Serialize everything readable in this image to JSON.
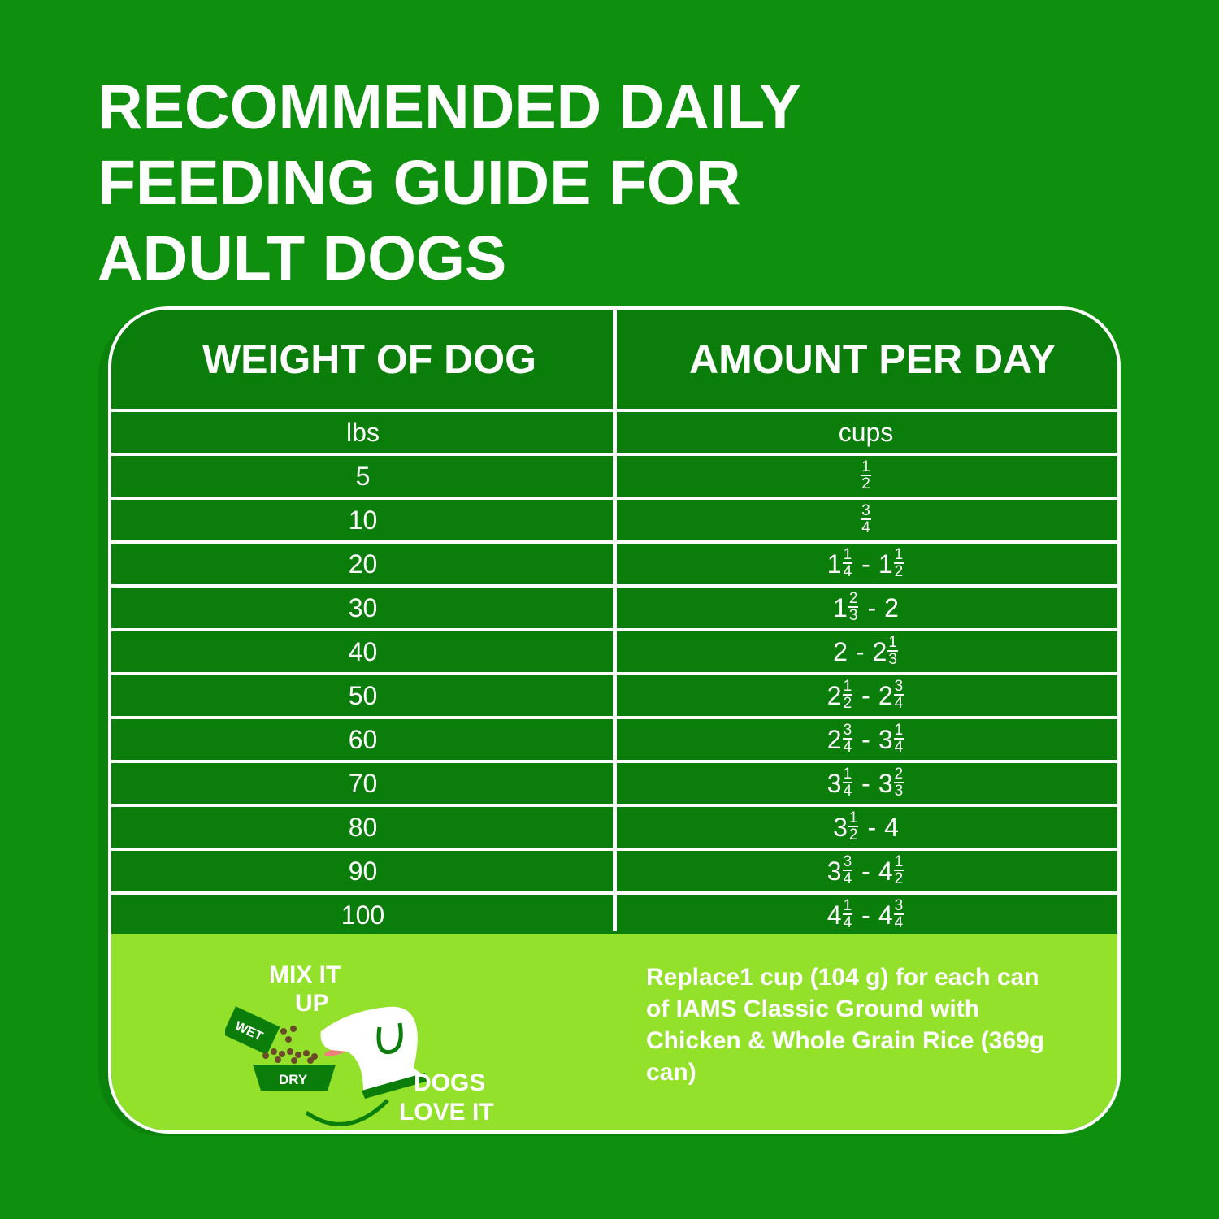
{
  "title": "RECOMMENDED DAILY\nFEEDING GUIDE FOR\nADULT DOGS",
  "table": {
    "headers": [
      "WEIGHT OF DOG",
      "AMOUNT PER DAY"
    ],
    "units": [
      "lbs",
      "cups"
    ],
    "rows": [
      {
        "weight": "5",
        "amount": [
          {
            "num": "1",
            "den": "2"
          }
        ]
      },
      {
        "weight": "10",
        "amount": [
          {
            "num": "3",
            "den": "4"
          }
        ]
      },
      {
        "weight": "20",
        "amount": [
          {
            "whole": "1",
            "num": "1",
            "den": "4"
          },
          "-",
          {
            "whole": "1",
            "num": "1",
            "den": "2"
          }
        ]
      },
      {
        "weight": "30",
        "amount": [
          {
            "whole": "1",
            "num": "2",
            "den": "3"
          },
          "-",
          {
            "whole": "2"
          }
        ]
      },
      {
        "weight": "40",
        "amount": [
          {
            "whole": "2"
          },
          "-",
          {
            "whole": "2",
            "num": "1",
            "den": "3"
          }
        ]
      },
      {
        "weight": "50",
        "amount": [
          {
            "whole": "2",
            "num": "1",
            "den": "2"
          },
          "-",
          {
            "whole": "2",
            "num": "3",
            "den": "4"
          }
        ]
      },
      {
        "weight": "60",
        "amount": [
          {
            "whole": "2",
            "num": "3",
            "den": "4"
          },
          "-",
          {
            "whole": "3",
            "num": "1",
            "den": "4"
          }
        ]
      },
      {
        "weight": "70",
        "amount": [
          {
            "whole": "3",
            "num": "1",
            "den": "4"
          },
          "-",
          {
            "whole": "3",
            "num": "2",
            "den": "3"
          }
        ]
      },
      {
        "weight": "80",
        "amount": [
          {
            "whole": "3",
            "num": "1",
            "den": "2"
          },
          "-",
          {
            "whole": "4"
          }
        ]
      },
      {
        "weight": "90",
        "amount": [
          {
            "whole": "3",
            "num": "3",
            "den": "4"
          },
          "-",
          {
            "whole": "4",
            "num": "1",
            "den": "2"
          }
        ]
      },
      {
        "weight": "100",
        "amount": [
          {
            "whole": "4",
            "num": "1",
            "den": "4"
          },
          "-",
          {
            "whole": "4",
            "num": "3",
            "den": "4"
          }
        ]
      }
    ]
  },
  "bottom": {
    "illustration": {
      "mix": "MIX IT",
      "up": "UP",
      "wet": "WET",
      "dry": "DRY",
      "dogs": "DOGS",
      "love": "LOVE IT"
    },
    "note": "Replace1 cup (104 g) for each can of IAMS Classic Ground with Chicken & Whole Grain Rice (369g can)"
  },
  "colors": {
    "background": "#0e8f0e",
    "table": "#0a7d0a",
    "lime": "#93e12a",
    "text": "#ffffff"
  }
}
